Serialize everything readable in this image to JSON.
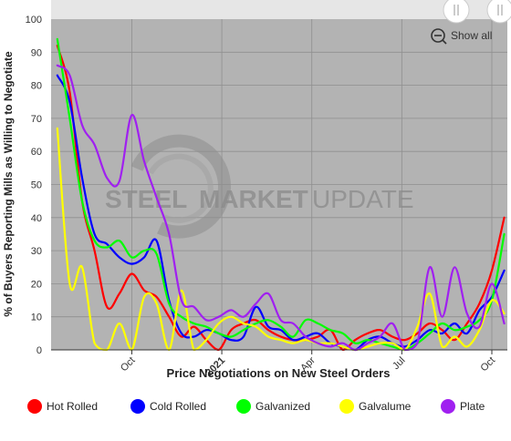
{
  "chart_data": {
    "type": "line",
    "title": "",
    "xlabel": "Price Negotiations on New Steel Orders",
    "ylabel": "% of Buyers Reporting Mills as Willing to Negotiate",
    "ylim": [
      0,
      100
    ],
    "yticks": [
      "0",
      "10",
      "20",
      "30",
      "40",
      "50",
      "60",
      "70",
      "80",
      "90",
      "100"
    ],
    "xticks": [
      {
        "label": "Oct",
        "x": 2.4,
        "bold": false
      },
      {
        "label": "2021",
        "x": 5.3,
        "bold": true
      },
      {
        "label": "Apr",
        "x": 8.2,
        "bold": false
      },
      {
        "label": "Jul",
        "x": 11.1,
        "bold": false
      },
      {
        "label": "Oct",
        "x": 14.0,
        "bold": false
      }
    ],
    "xlim": [
      -0.2,
      14.5
    ],
    "grid": true,
    "legend_position": "bottom",
    "series": [
      {
        "name": "Hot Rolled",
        "color": "#ff0000",
        "x": [
          0,
          0.4,
          0.8,
          1.2,
          1.6,
          2.0,
          2.4,
          2.8,
          3.2,
          3.6,
          4.0,
          4.4,
          4.8,
          5.2,
          5.6,
          6.0,
          6.4,
          6.8,
          7.2,
          7.6,
          8.0,
          8.4,
          8.8,
          9.2,
          9.6,
          10.0,
          10.4,
          10.8,
          11.2,
          11.6,
          12.0,
          12.4,
          12.8,
          13.2,
          13.6,
          14.0,
          14.4
        ],
        "values": [
          92,
          78,
          45,
          30,
          13,
          17,
          23,
          18,
          16,
          10,
          4,
          7,
          3,
          0,
          6,
          8,
          9,
          6,
          4,
          3,
          3,
          4,
          6,
          0,
          3,
          5,
          6,
          4,
          3,
          5,
          8,
          6,
          3,
          8,
          14,
          24,
          40
        ]
      },
      {
        "name": "Cold Rolled",
        "color": "#0000ff",
        "x": [
          0,
          0.4,
          0.8,
          1.2,
          1.6,
          2.0,
          2.4,
          2.8,
          3.2,
          3.6,
          4.0,
          4.4,
          4.8,
          5.2,
          5.6,
          6.0,
          6.4,
          6.8,
          7.2,
          7.6,
          8.0,
          8.4,
          8.8,
          9.2,
          9.6,
          10.0,
          10.4,
          10.8,
          11.2,
          11.6,
          12.0,
          12.4,
          12.8,
          13.2,
          13.6,
          14.0,
          14.4
        ],
        "values": [
          83,
          75,
          52,
          35,
          32,
          28,
          26,
          28,
          33,
          15,
          5,
          4,
          6,
          5,
          3,
          4,
          13,
          7,
          6,
          3,
          4,
          5,
          2,
          1,
          0,
          3,
          4,
          2,
          1,
          3,
          6,
          5,
          8,
          5,
          12,
          16,
          24
        ]
      },
      {
        "name": "Galvanized",
        "color": "#00ff00",
        "x": [
          0,
          0.4,
          0.8,
          1.2,
          1.6,
          2.0,
          2.4,
          2.8,
          3.2,
          3.6,
          4.0,
          4.4,
          4.8,
          5.2,
          5.6,
          6.0,
          6.4,
          6.8,
          7.2,
          7.6,
          8.0,
          8.4,
          8.8,
          9.2,
          9.6,
          10.0,
          10.4,
          10.8,
          11.2,
          11.6,
          12.0,
          12.4,
          12.8,
          13.2,
          13.6,
          14.0,
          14.4
        ],
        "values": [
          94,
          70,
          45,
          33,
          31,
          33,
          28,
          30,
          29,
          14,
          10,
          8,
          7,
          5,
          4,
          6,
          8,
          9,
          7,
          4,
          9,
          8,
          6,
          5,
          2,
          3,
          2,
          1,
          0,
          2,
          5,
          8,
          6,
          7,
          9,
          15,
          35
        ]
      },
      {
        "name": "Galvalume",
        "color": "#ffff00",
        "x": [
          0,
          0.4,
          0.8,
          1.2,
          1.6,
          2.0,
          2.4,
          2.8,
          3.2,
          3.6,
          4.0,
          4.4,
          4.8,
          5.2,
          5.6,
          6.0,
          6.4,
          6.8,
          7.2,
          7.6,
          8.0,
          8.4,
          8.8,
          9.2,
          9.6,
          10.0,
          10.4,
          10.8,
          11.2,
          11.6,
          12.0,
          12.4,
          12.8,
          13.2,
          13.6,
          14.0,
          14.4
        ],
        "values": [
          67,
          20,
          25,
          2,
          0,
          8,
          0,
          16,
          14,
          0,
          18,
          0,
          3,
          8,
          10,
          8,
          7,
          4,
          3,
          2,
          3,
          2,
          2,
          1,
          0,
          1,
          2,
          2,
          0,
          7,
          17,
          1,
          4,
          1,
          6,
          15,
          11
        ]
      },
      {
        "name": "Plate",
        "color": "#a020f0",
        "x": [
          0,
          0.4,
          0.8,
          1.2,
          1.6,
          2.0,
          2.4,
          2.8,
          3.2,
          3.6,
          4.0,
          4.4,
          4.8,
          5.2,
          5.6,
          6.0,
          6.4,
          6.8,
          7.2,
          7.6,
          8.0,
          8.4,
          8.8,
          9.2,
          9.6,
          10.0,
          10.4,
          10.8,
          11.2,
          11.6,
          12.0,
          12.4,
          12.8,
          13.2,
          13.6,
          14.0,
          14.4
        ],
        "values": [
          86,
          83,
          68,
          62,
          52,
          51,
          71,
          57,
          46,
          35,
          15,
          13,
          9,
          10,
          12,
          10,
          14,
          17,
          9,
          8,
          4,
          2,
          1,
          2,
          0,
          2,
          4,
          8,
          0,
          2,
          25,
          10,
          25,
          11,
          7,
          20,
          8
        ]
      }
    ]
  },
  "controls": {
    "show_all_label": "Show all"
  },
  "watermark": {
    "word1": "STEEL",
    "word2": "MARKET",
    "word3": "UPDATE"
  }
}
